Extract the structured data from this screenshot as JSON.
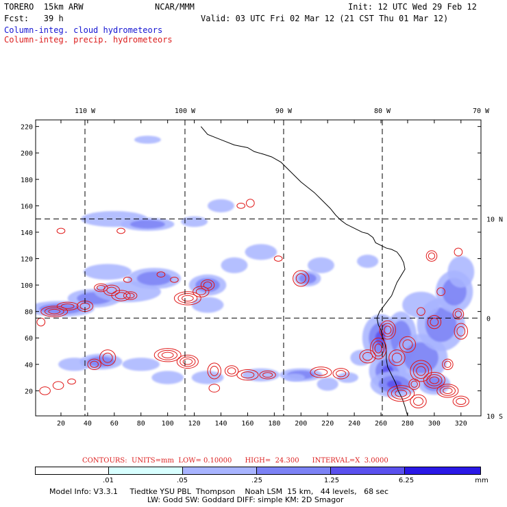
{
  "header": {
    "model": "TORERO  15km ARW",
    "center": "NCAR/MMM",
    "init": "Init: 12 UTC Wed 29 Feb 12",
    "fcst": "Fcst:   39 h",
    "valid": "Valid: 03 UTC Fri 02 Mar 12 (21 CST Thu 01 Mar 12)",
    "field_cloud": "Column-integ. cloud hydrometeors",
    "field_precip": "Column-integ. precip. hydrometeors"
  },
  "colors": {
    "cloud_text": "#1414d2",
    "precip_text": "#dc1e1e",
    "contour": "#e01818",
    "coast": "#000000"
  },
  "chart_data": {
    "type": "heatmap",
    "x_ticks": [
      20,
      40,
      60,
      80,
      100,
      120,
      140,
      160,
      180,
      200,
      220,
      240,
      260,
      280,
      300,
      320
    ],
    "y_ticks": [
      20,
      40,
      60,
      80,
      100,
      120,
      140,
      160,
      180,
      200,
      220
    ],
    "xlim": [
      1,
      335
    ],
    "ylim": [
      1,
      225
    ],
    "lon_labels": [
      "110 W",
      "100 W",
      "90 W",
      "80 W",
      "70 W"
    ],
    "lon_values": [
      -110,
      -100,
      -90,
      -80,
      -70
    ],
    "lon_grid_x": [
      38,
      113,
      187,
      261,
      335
    ],
    "lat_labels": [
      "10 N",
      "0",
      "10 S"
    ],
    "lat_grid_y": [
      150,
      75,
      1
    ],
    "cloud_blobs": [
      [
        20,
        82,
        25,
        6,
        2
      ],
      [
        45,
        90,
        20,
        7,
        2
      ],
      [
        70,
        95,
        25,
        8,
        1
      ],
      [
        90,
        105,
        20,
        8,
        2
      ],
      [
        55,
        110,
        18,
        6,
        1
      ],
      [
        130,
        100,
        14,
        8,
        2
      ],
      [
        130,
        85,
        12,
        6,
        1
      ],
      [
        150,
        115,
        10,
        6,
        1
      ],
      [
        170,
        125,
        12,
        6,
        1
      ],
      [
        205,
        105,
        10,
        6,
        2
      ],
      [
        215,
        115,
        10,
        6,
        1
      ],
      [
        250,
        118,
        8,
        5,
        1
      ],
      [
        60,
        150,
        25,
        6,
        1
      ],
      [
        85,
        146,
        20,
        5,
        2
      ],
      [
        120,
        148,
        10,
        4,
        1
      ],
      [
        140,
        160,
        10,
        5,
        1
      ],
      [
        30,
        40,
        12,
        5,
        1
      ],
      [
        50,
        42,
        16,
        6,
        2
      ],
      [
        80,
        40,
        14,
        5,
        1
      ],
      [
        100,
        30,
        12,
        5,
        1
      ],
      [
        130,
        30,
        12,
        5,
        1
      ],
      [
        170,
        32,
        14,
        5,
        1
      ],
      [
        200,
        32,
        16,
        5,
        2
      ],
      [
        235,
        30,
        8,
        4,
        1
      ],
      [
        260,
        60,
        14,
        18,
        3
      ],
      [
        275,
        60,
        12,
        20,
        2
      ],
      [
        265,
        35,
        14,
        14,
        3
      ],
      [
        290,
        45,
        20,
        18,
        2
      ],
      [
        305,
        70,
        18,
        20,
        2
      ],
      [
        315,
        95,
        14,
        16,
        2
      ],
      [
        290,
        85,
        14,
        10,
        1
      ],
      [
        270,
        25,
        18,
        10,
        3
      ],
      [
        300,
        25,
        12,
        8,
        2
      ],
      [
        220,
        25,
        8,
        5,
        1
      ],
      [
        85,
        210,
        10,
        3,
        1
      ],
      [
        195,
        30,
        8,
        3,
        1
      ],
      [
        320,
        110,
        10,
        12,
        1
      ],
      [
        245,
        45,
        8,
        6,
        1
      ]
    ],
    "precip_cells": [
      [
        5,
        72,
        3,
        3
      ],
      [
        15,
        80,
        10,
        4
      ],
      [
        25,
        84,
        8,
        3
      ],
      [
        38,
        84,
        6,
        4
      ],
      [
        50,
        98,
        5,
        3
      ],
      [
        58,
        96,
        6,
        4
      ],
      [
        65,
        92,
        7,
        4
      ],
      [
        72,
        92,
        5,
        3
      ],
      [
        20,
        141,
        3,
        2
      ],
      [
        65,
        141,
        3,
        2
      ],
      [
        70,
        104,
        3,
        2
      ],
      [
        95,
        108,
        3,
        2
      ],
      [
        105,
        104,
        3,
        2
      ],
      [
        115,
        90,
        10,
        5
      ],
      [
        125,
        95,
        6,
        4
      ],
      [
        130,
        100,
        5,
        4
      ],
      [
        135,
        35,
        5,
        6
      ],
      [
        148,
        35,
        5,
        4
      ],
      [
        155,
        160,
        3,
        2
      ],
      [
        162,
        162,
        3,
        3
      ],
      [
        183,
        120,
        3,
        2
      ],
      [
        200,
        105,
        6,
        6
      ],
      [
        8,
        20,
        4,
        3
      ],
      [
        18,
        24,
        4,
        3
      ],
      [
        28,
        27,
        3,
        2
      ],
      [
        55,
        45,
        6,
        6
      ],
      [
        45,
        40,
        5,
        4
      ],
      [
        100,
        47,
        10,
        5
      ],
      [
        115,
        42,
        8,
        5
      ],
      [
        160,
        32,
        8,
        4
      ],
      [
        175,
        32,
        6,
        3
      ],
      [
        215,
        34,
        8,
        4
      ],
      [
        230,
        33,
        6,
        4
      ],
      [
        135,
        22,
        4,
        3
      ],
      [
        258,
        52,
        6,
        8
      ],
      [
        265,
        66,
        6,
        7
      ],
      [
        272,
        45,
        6,
        6
      ],
      [
        280,
        55,
        6,
        6
      ],
      [
        290,
        35,
        8,
        8
      ],
      [
        300,
        28,
        8,
        6
      ],
      [
        310,
        20,
        8,
        5
      ],
      [
        320,
        12,
        6,
        4
      ],
      [
        275,
        18,
        10,
        6
      ],
      [
        288,
        12,
        6,
        5
      ],
      [
        250,
        46,
        6,
        5
      ],
      [
        300,
        72,
        5,
        5
      ],
      [
        320,
        65,
        5,
        6
      ],
      [
        318,
        78,
        4,
        4
      ],
      [
        298,
        122,
        4,
        4
      ],
      [
        318,
        125,
        3,
        3
      ],
      [
        290,
        80,
        3,
        3
      ],
      [
        305,
        95,
        3,
        3
      ],
      [
        310,
        40,
        4,
        4
      ],
      [
        285,
        25,
        4,
        4
      ]
    ],
    "coastline_path": [
      [
        125,
        220
      ],
      [
        130,
        214
      ],
      [
        140,
        210
      ],
      [
        150,
        206
      ],
      [
        160,
        204
      ],
      [
        165,
        201
      ],
      [
        172,
        199
      ],
      [
        178,
        197
      ],
      [
        185,
        193
      ],
      [
        190,
        188
      ],
      [
        195,
        183
      ],
      [
        200,
        178
      ],
      [
        205,
        174
      ],
      [
        210,
        170
      ],
      [
        214,
        166
      ],
      [
        218,
        162
      ],
      [
        222,
        158
      ],
      [
        226,
        153
      ],
      [
        230,
        149
      ],
      [
        234,
        146
      ],
      [
        238,
        144
      ],
      [
        242,
        142
      ],
      [
        246,
        140
      ],
      [
        250,
        139
      ],
      [
        254,
        136
      ],
      [
        256,
        132
      ],
      [
        260,
        130
      ],
      [
        264,
        128
      ],
      [
        268,
        127
      ],
      [
        272,
        125
      ],
      [
        275,
        121
      ],
      [
        277,
        117
      ],
      [
        278,
        112
      ],
      [
        275,
        107
      ],
      [
        272,
        102
      ],
      [
        270,
        97
      ],
      [
        268,
        92
      ],
      [
        265,
        88
      ],
      [
        262,
        84
      ],
      [
        259,
        80
      ],
      [
        257,
        75
      ],
      [
        258,
        70
      ],
      [
        260,
        66
      ],
      [
        261,
        61
      ],
      [
        263,
        56
      ],
      [
        264,
        50
      ],
      [
        264,
        44
      ],
      [
        265,
        38
      ],
      [
        268,
        32
      ],
      [
        271,
        26
      ],
      [
        273,
        20
      ],
      [
        276,
        14
      ],
      [
        278,
        8
      ],
      [
        280,
        1
      ]
    ],
    "contours_label": "CONTOURS:  UNITS=mm  LOW= 0.10000      HIGH=  24.300      INTERVAL=X  3.0000",
    "legend_labels": [
      ".01",
      ".05",
      ".25",
      "1.25",
      "6.25"
    ],
    "legend_values": [
      0.01,
      0.05,
      0.25,
      1.25,
      6.25
    ],
    "legend_colors": [
      "#ffffff",
      "#d8ffff",
      "#a8b4ff",
      "#7c82f5",
      "#5a50ee",
      "#2a18e6"
    ],
    "legend_units": "mm"
  },
  "footer": {
    "model_info1": "Model Info: V3.3.1     Tiedtke YSU PBL  Thompson    Noah LSM  15 km,   44 levels,   68 sec",
    "model_info2": "LW: Godd SW: Goddard DIFF: simple KM: 2D Smagor"
  }
}
